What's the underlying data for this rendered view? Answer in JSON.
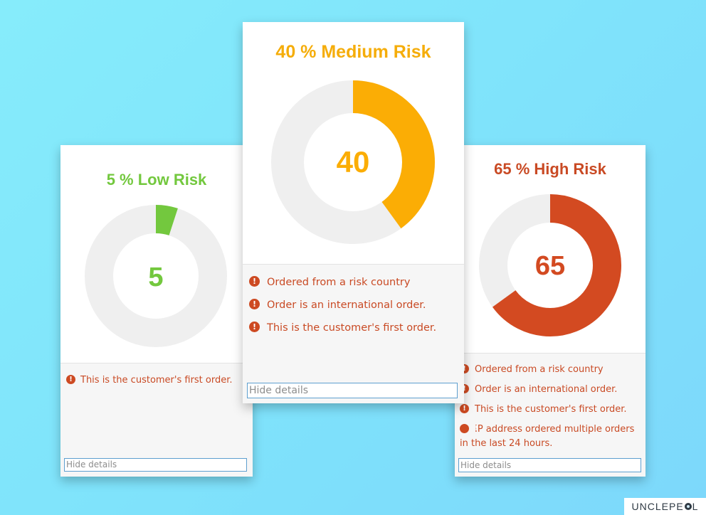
{
  "colors": {
    "low": "#73c83e",
    "medium": "#fbad05",
    "high": "#d34a21",
    "track": "#efefef",
    "reason_text": "#c94a24"
  },
  "cards": {
    "low": {
      "title": "5 % Low Risk",
      "score": "5",
      "percent": 5,
      "reasons": [
        "This is the customer's first order."
      ],
      "hide_label": "Hide details"
    },
    "medium": {
      "title": "40 % Medium Risk",
      "score": "40",
      "percent": 40,
      "reasons": [
        "Ordered from a risk country",
        "Order is an international order.",
        "This is the customer's first order."
      ],
      "hide_label": "Hide details"
    },
    "high": {
      "title": "65 % High Risk",
      "score": "65",
      "percent": 65,
      "reasons": [
        "Ordered from a risk country",
        "Order is an international order.",
        "This is the customer's first order.",
        "IP address ordered multiple orders in the last 24 hours."
      ],
      "hide_label": "Hide details"
    }
  },
  "alert_glyph": "!",
  "brand": {
    "left": "UNCLEPE",
    "right": "L",
    "icon": "owl-face-icon"
  }
}
